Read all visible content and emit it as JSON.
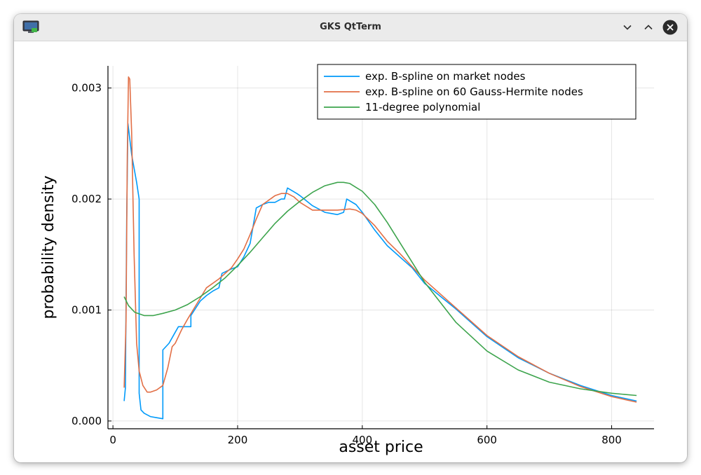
{
  "window": {
    "title": "GKS QtTerm",
    "icons": {
      "app": "monitor-icon",
      "minimize": "chevron-down-icon",
      "maximize": "chevron-up-icon",
      "close": "close-icon"
    }
  },
  "chart_data": {
    "type": "line",
    "title": "",
    "xlabel": "asset price",
    "ylabel": "probability density",
    "xlim": [
      -8,
      868
    ],
    "ylim": [
      -7e-05,
      0.0032
    ],
    "xticks": [
      0,
      200,
      400,
      600,
      800
    ],
    "xtick_labels": [
      "0",
      "200",
      "400",
      "600",
      "800"
    ],
    "yticks": [
      0,
      0.001,
      0.002,
      0.003
    ],
    "ytick_labels": [
      "0.000",
      "0.001",
      "0.002",
      "0.003"
    ],
    "grid": true,
    "legend_position": "top-right",
    "series": [
      {
        "name": "exp. B-spline on market nodes",
        "color": "#009AFA",
        "x": [
          18,
          20,
          22,
          24,
          30,
          38,
          42,
          42,
          45,
          50,
          60,
          70,
          80,
          80,
          90,
          100,
          105,
          110,
          120,
          125,
          125,
          140,
          150,
          160,
          170,
          175,
          190,
          200,
          210,
          220,
          230,
          240,
          250,
          260,
          270,
          272,
          275,
          280,
          295,
          300,
          320,
          340,
          350,
          360,
          370,
          372,
          375,
          390,
          400,
          420,
          440,
          460,
          480,
          500,
          550,
          600,
          650,
          700,
          750,
          800,
          840
        ],
        "y": [
          0.00018,
          0.0003,
          0.0018,
          0.00268,
          0.0024,
          0.00215,
          0.002,
          0.00025,
          0.0001,
          7e-05,
          4e-05,
          3e-05,
          2e-05,
          0.00064,
          0.0007,
          0.0008,
          0.00085,
          0.00085,
          0.00085,
          0.00085,
          0.00095,
          0.00108,
          0.00113,
          0.00117,
          0.0012,
          0.00133,
          0.00137,
          0.00139,
          0.00148,
          0.0016,
          0.00192,
          0.00195,
          0.00197,
          0.00197,
          0.002,
          0.002,
          0.002,
          0.0021,
          0.00205,
          0.00203,
          0.00194,
          0.00188,
          0.00187,
          0.00186,
          0.00188,
          0.00192,
          0.002,
          0.00195,
          0.00188,
          0.00172,
          0.00158,
          0.00148,
          0.00138,
          0.00124,
          0.00101,
          0.00076,
          0.00057,
          0.00043,
          0.00032,
          0.00023,
          0.00018
        ]
      },
      {
        "name": "exp. B-spline on 60 Gauss-Hermite nodes",
        "color": "#E26F46",
        "x": [
          18,
          21,
          23,
          25,
          27,
          30,
          34,
          38,
          42,
          48,
          55,
          60,
          70,
          80,
          88,
          95,
          100,
          110,
          120,
          135,
          150,
          170,
          190,
          200,
          210,
          220,
          230,
          240,
          250,
          260,
          270,
          280,
          290,
          300,
          320,
          340,
          360,
          380,
          390,
          400,
          420,
          440,
          460,
          480,
          500,
          550,
          600,
          650,
          700,
          750,
          800,
          840
        ],
        "y": [
          0.0003,
          0.0009,
          0.0024,
          0.0031,
          0.00308,
          0.0026,
          0.0015,
          0.0007,
          0.00045,
          0.00032,
          0.00026,
          0.00026,
          0.00028,
          0.00032,
          0.00048,
          0.00067,
          0.0007,
          0.00082,
          0.00092,
          0.00106,
          0.0012,
          0.00128,
          0.00138,
          0.00146,
          0.00155,
          0.00168,
          0.00182,
          0.00195,
          0.00199,
          0.00203,
          0.00205,
          0.00205,
          0.00202,
          0.00197,
          0.0019,
          0.0019,
          0.0019,
          0.00191,
          0.0019,
          0.00187,
          0.00176,
          0.00162,
          0.00151,
          0.00139,
          0.00127,
          0.00102,
          0.00077,
          0.00058,
          0.00043,
          0.00031,
          0.00022,
          0.00017
        ]
      },
      {
        "name": "11-degree polynomial",
        "color": "#3DA44D",
        "x": [
          18,
          25,
          35,
          50,
          65,
          80,
          100,
          120,
          140,
          160,
          180,
          200,
          220,
          240,
          260,
          280,
          300,
          320,
          340,
          360,
          370,
          380,
          400,
          420,
          440,
          460,
          480,
          500,
          550,
          600,
          650,
          700,
          750,
          800,
          840
        ],
        "y": [
          0.00112,
          0.00104,
          0.00098,
          0.00095,
          0.00095,
          0.00097,
          0.001,
          0.00105,
          0.00112,
          0.0012,
          0.00129,
          0.0014,
          0.00152,
          0.00165,
          0.00178,
          0.00189,
          0.00198,
          0.00206,
          0.00212,
          0.00215,
          0.00215,
          0.00214,
          0.00207,
          0.00195,
          0.00179,
          0.00161,
          0.00143,
          0.00125,
          0.00089,
          0.00063,
          0.00046,
          0.00035,
          0.00029,
          0.00025,
          0.00023
        ]
      }
    ]
  }
}
